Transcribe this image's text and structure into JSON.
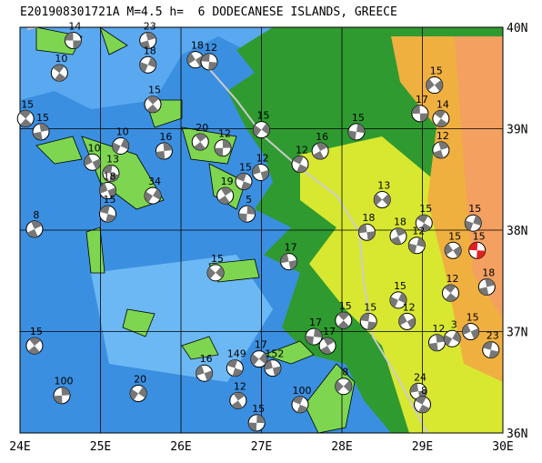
{
  "title": "E201908301721A M=4.5 h=  6 DODECANESE ISLANDS, GREECE",
  "map": {
    "lonlim": [
      24,
      30
    ],
    "latlim": [
      36,
      40
    ],
    "lon_ticks": [
      {
        "value": 24,
        "label": "24E"
      },
      {
        "value": 25,
        "label": "25E"
      },
      {
        "value": 26,
        "label": "26E"
      },
      {
        "value": 27,
        "label": "27E"
      },
      {
        "value": 28,
        "label": "28E"
      },
      {
        "value": 29,
        "label": "29E"
      },
      {
        "value": 30,
        "label": "30E"
      }
    ],
    "lat_ticks": [
      {
        "value": 36,
        "label": "36N"
      },
      {
        "value": 37,
        "label": "37N"
      },
      {
        "value": 38,
        "label": "38N"
      },
      {
        "value": 39,
        "label": "39N"
      },
      {
        "value": 40,
        "label": "40N"
      }
    ]
  },
  "events": [
    {
      "lon": 24.66,
      "lat": 39.87,
      "depth": 14
    },
    {
      "lon": 24.49,
      "lat": 39.55,
      "depth": 10
    },
    {
      "lon": 25.59,
      "lat": 39.87,
      "depth": 23
    },
    {
      "lon": 25.59,
      "lat": 39.63,
      "depth": 18
    },
    {
      "lon": 26.18,
      "lat": 39.68,
      "depth": 18
    },
    {
      "lon": 26.35,
      "lat": 39.66,
      "depth": 12
    },
    {
      "lon": 24.07,
      "lat": 39.1,
      "depth": 15
    },
    {
      "lon": 24.26,
      "lat": 38.97,
      "depth": 15
    },
    {
      "lon": 25.25,
      "lat": 38.83,
      "depth": 10
    },
    {
      "lon": 24.9,
      "lat": 38.67,
      "depth": 10
    },
    {
      "lon": 25.13,
      "lat": 38.56,
      "depth": 13
    },
    {
      "lon": 25.65,
      "lat": 39.24,
      "depth": 15
    },
    {
      "lon": 25.79,
      "lat": 38.78,
      "depth": 16
    },
    {
      "lon": 25.65,
      "lat": 38.34,
      "depth": 34
    },
    {
      "lon": 25.09,
      "lat": 38.39,
      "depth": 18
    },
    {
      "lon": 25.09,
      "lat": 38.16,
      "depth": 15
    },
    {
      "lon": 26.24,
      "lat": 38.87,
      "depth": 20
    },
    {
      "lon": 26.52,
      "lat": 38.81,
      "depth": 12
    },
    {
      "lon": 27.0,
      "lat": 38.99,
      "depth": 15
    },
    {
      "lon": 26.99,
      "lat": 38.57,
      "depth": 12
    },
    {
      "lon": 26.78,
      "lat": 38.48,
      "depth": 15
    },
    {
      "lon": 26.55,
      "lat": 38.34,
      "depth": 19
    },
    {
      "lon": 26.82,
      "lat": 38.16,
      "depth": 5
    },
    {
      "lon": 26.43,
      "lat": 37.58,
      "depth": 15
    },
    {
      "lon": 27.34,
      "lat": 37.69,
      "depth": 17
    },
    {
      "lon": 27.48,
      "lat": 38.65,
      "depth": 12
    },
    {
      "lon": 27.73,
      "lat": 38.78,
      "depth": 16
    },
    {
      "lon": 28.18,
      "lat": 38.97,
      "depth": 15
    },
    {
      "lon": 28.5,
      "lat": 38.3,
      "depth": 13
    },
    {
      "lon": 28.31,
      "lat": 37.98,
      "depth": 18
    },
    {
      "lon": 29.02,
      "lat": 38.07,
      "depth": 15
    },
    {
      "lon": 28.7,
      "lat": 37.94,
      "depth": 18
    },
    {
      "lon": 28.93,
      "lat": 37.85,
      "depth": 12
    },
    {
      "lon": 29.15,
      "lat": 39.43,
      "depth": 15
    },
    {
      "lon": 28.97,
      "lat": 39.15,
      "depth": 17
    },
    {
      "lon": 29.23,
      "lat": 39.1,
      "depth": 14
    },
    {
      "lon": 29.23,
      "lat": 38.79,
      "depth": 12
    },
    {
      "lon": 29.63,
      "lat": 38.07,
      "depth": 15
    },
    {
      "lon": 29.38,
      "lat": 37.8,
      "depth": 15
    },
    {
      "lon": 29.68,
      "lat": 37.8,
      "depth": 15,
      "highlighted": true
    },
    {
      "lon": 29.35,
      "lat": 37.38,
      "depth": 12
    },
    {
      "lon": 29.8,
      "lat": 37.44,
      "depth": 18
    },
    {
      "lon": 28.7,
      "lat": 37.31,
      "depth": 15
    },
    {
      "lon": 28.81,
      "lat": 37.1,
      "depth": 12
    },
    {
      "lon": 28.33,
      "lat": 37.1,
      "depth": 15
    },
    {
      "lon": 28.02,
      "lat": 37.11,
      "depth": 15
    },
    {
      "lon": 29.18,
      "lat": 36.89,
      "depth": 12
    },
    {
      "lon": 29.37,
      "lat": 36.93,
      "depth": 3
    },
    {
      "lon": 29.6,
      "lat": 37.0,
      "depth": 15
    },
    {
      "lon": 29.85,
      "lat": 36.82,
      "depth": 23
    },
    {
      "lon": 24.18,
      "lat": 36.86,
      "depth": 15
    },
    {
      "lon": 24.52,
      "lat": 36.37,
      "depth": 100
    },
    {
      "lon": 25.47,
      "lat": 36.39,
      "depth": 20
    },
    {
      "lon": 26.29,
      "lat": 36.59,
      "depth": 16
    },
    {
      "lon": 26.67,
      "lat": 36.64,
      "depth": 149
    },
    {
      "lon": 26.71,
      "lat": 36.32,
      "depth": 12
    },
    {
      "lon": 26.94,
      "lat": 36.1,
      "depth": 15
    },
    {
      "lon": 26.97,
      "lat": 36.73,
      "depth": 17
    },
    {
      "lon": 27.14,
      "lat": 36.64,
      "depth": 152
    },
    {
      "lon": 27.48,
      "lat": 36.28,
      "depth": 100
    },
    {
      "lon": 27.82,
      "lat": 36.86,
      "depth": 17
    },
    {
      "lon": 27.65,
      "lat": 36.95,
      "depth": 17
    },
    {
      "lon": 28.02,
      "lat": 36.46,
      "depth": 8
    },
    {
      "lon": 28.95,
      "lat": 36.41,
      "depth": 24
    },
    {
      "lon": 29.0,
      "lat": 36.28,
      "depth": 8
    },
    {
      "lon": 24.18,
      "lat": 38.01,
      "depth": 8
    }
  ]
}
